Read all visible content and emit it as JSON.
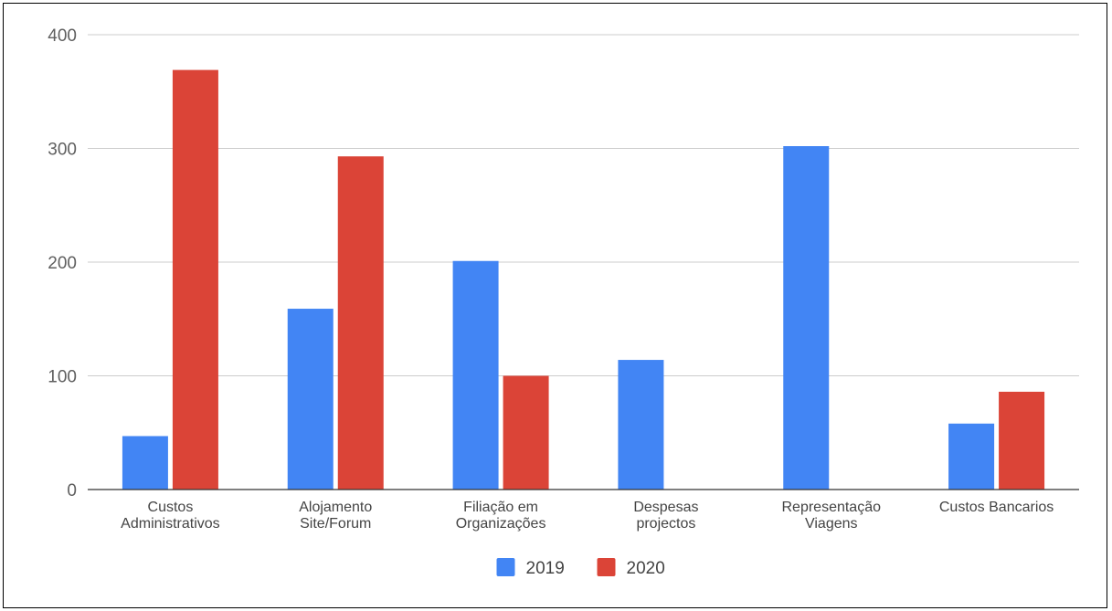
{
  "chart_data": {
    "type": "bar",
    "categories": [
      [
        "Custos",
        "Administrativos"
      ],
      [
        "Alojamento",
        "Site/Forum"
      ],
      [
        "Filiação em",
        "Organizações"
      ],
      [
        "Despesas",
        "projectos"
      ],
      [
        "Representação",
        "Viagens"
      ],
      [
        "Custos Bancarios"
      ]
    ],
    "series": [
      {
        "name": "2019",
        "color": "#4285f4",
        "values": [
          47,
          159,
          201,
          114,
          302,
          58
        ]
      },
      {
        "name": "2020",
        "color": "#db4437",
        "values": [
          369,
          293,
          100,
          0,
          0,
          86
        ]
      }
    ],
    "yticks": [
      "0",
      "100",
      "200",
      "300",
      "400"
    ],
    "ylim": [
      0,
      400
    ],
    "grid": true,
    "legend": "bottom-center"
  }
}
